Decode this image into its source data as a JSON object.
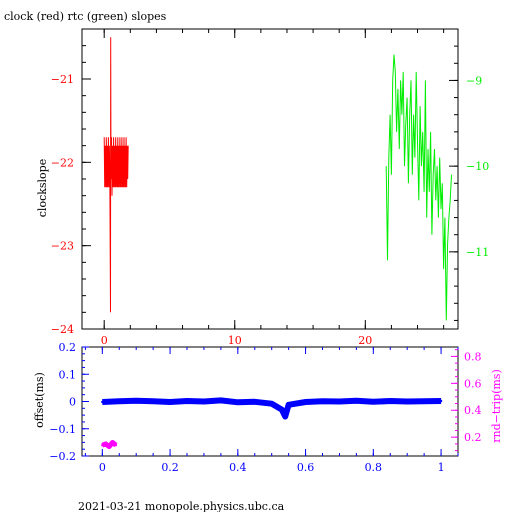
{
  "title": "clock (red) rtc (green) slopes",
  "footer": "2021-03-21  monopole.physics.ubc.ca",
  "colors": {
    "axis": "#000000",
    "clock": "#ff0000",
    "rtc": "#00ee00",
    "offset": "#0000ff",
    "rtt": "#ff00ff"
  },
  "chart_data": [
    {
      "type": "line",
      "title": "clock (red) rtc (green) slopes",
      "ylabel": "clockslope",
      "xlim": [
        -1.7,
        27.1
      ],
      "x_ticks": [
        0,
        10,
        20
      ],
      "x_minor_step": 2,
      "ylim_left": [
        -24,
        -20.4
      ],
      "y_ticks_left": [
        -21,
        -22,
        -23,
        -24
      ],
      "ylim_right": [
        -11.9,
        -8.4
      ],
      "y_ticks_right": [
        -9,
        -10,
        -11
      ],
      "y_minor_step_left": 0.2,
      "y_minor_step_right": 0.2,
      "grid": false,
      "series": [
        {
          "name": "clock",
          "axis": "left",
          "color": "#ff0000",
          "x": [
            0.0,
            0.04,
            0.08,
            0.12,
            0.16,
            0.2,
            0.24,
            0.28,
            0.32,
            0.36,
            0.4,
            0.44,
            0.48,
            0.5,
            0.52,
            0.56,
            0.6,
            0.64,
            0.68,
            0.72,
            0.76,
            0.8,
            0.84,
            0.88,
            0.92,
            0.96,
            1.0,
            1.04,
            1.08,
            1.12,
            1.16,
            1.2,
            1.24,
            1.28,
            1.32,
            1.36,
            1.4,
            1.44,
            1.48,
            1.52,
            1.56,
            1.6,
            1.64,
            1.68,
            1.72,
            1.76,
            1.8,
            1.84
          ],
          "y": [
            -21.7,
            -22.3,
            -21.8,
            -22.3,
            -21.7,
            -22.3,
            -21.8,
            -22.3,
            -21.7,
            -22.3,
            -21.8,
            -22.3,
            -23.8,
            -20.5,
            -22.2,
            -21.7,
            -22.4,
            -21.8,
            -22.3,
            -21.7,
            -22.3,
            -21.8,
            -22.3,
            -21.7,
            -22.3,
            -21.8,
            -22.3,
            -21.7,
            -22.3,
            -21.8,
            -22.3,
            -21.7,
            -22.3,
            -21.8,
            -22.3,
            -21.7,
            -22.3,
            -21.8,
            -22.3,
            -21.7,
            -22.3,
            -21.8,
            -22.3,
            -21.7,
            -22.3,
            -21.8,
            -22.2,
            -21.8
          ]
        },
        {
          "name": "rtc",
          "axis": "right",
          "color": "#00ee00",
          "x": [
            21.6,
            21.7,
            21.8,
            21.9,
            22.0,
            22.1,
            22.2,
            22.3,
            22.4,
            22.5,
            22.6,
            22.7,
            22.8,
            22.9,
            23.0,
            23.1,
            23.2,
            23.3,
            23.4,
            23.5,
            23.6,
            23.7,
            23.8,
            23.9,
            24.0,
            24.1,
            24.2,
            24.3,
            24.4,
            24.5,
            24.6,
            24.7,
            24.8,
            24.9,
            25.0,
            25.1,
            25.2,
            25.3,
            25.4,
            25.5,
            25.6,
            25.7,
            25.8,
            25.9,
            26.0,
            26.1,
            26.2,
            26.3,
            26.4,
            26.5,
            26.6
          ],
          "y": [
            -10.0,
            -11.1,
            -9.9,
            -9.4,
            -10.1,
            -9.0,
            -8.7,
            -8.9,
            -9.6,
            -9.1,
            -9.8,
            -9.0,
            -9.4,
            -8.9,
            -10.0,
            -9.5,
            -9.2,
            -10.2,
            -9.4,
            -9.0,
            -10.1,
            -9.4,
            -9.9,
            -8.9,
            -9.7,
            -10.4,
            -9.3,
            -10.0,
            -9.6,
            -10.3,
            -9.0,
            -10.6,
            -9.8,
            -10.3,
            -9.6,
            -10.8,
            -10.1,
            -9.8,
            -10.4,
            -10.0,
            -10.6,
            -9.9,
            -10.5,
            -10.2,
            -11.2,
            -10.6,
            -11.8,
            -10.9,
            -10.6,
            -10.4,
            -10.1
          ]
        }
      ]
    },
    {
      "type": "scatter",
      "ylabel": "offset(ms)",
      "ylabel_right": "rnd−trip(ms)",
      "xlim": [
        -0.06,
        1.05
      ],
      "x_ticks": [
        0,
        0.2,
        0.4,
        0.6,
        0.8,
        1
      ],
      "ylim_left": [
        -0.2,
        0.2
      ],
      "y_ticks_left": [
        0.2,
        0.1,
        0,
        -0.1,
        -0.2
      ],
      "ylim_right": [
        0.06,
        0.87
      ],
      "y_ticks_right": [
        0.2,
        0.4,
        0.6,
        0.8
      ],
      "grid": false,
      "series": [
        {
          "name": "offset",
          "axis": "left",
          "color": "#0000ff",
          "x": [
            0.0,
            0.05,
            0.1,
            0.15,
            0.2,
            0.25,
            0.3,
            0.35,
            0.4,
            0.45,
            0.5,
            0.53,
            0.54,
            0.55,
            0.6,
            0.65,
            0.7,
            0.75,
            0.8,
            0.85,
            0.9,
            0.95,
            1.0
          ],
          "y": [
            -0.002,
            0.001,
            0.003,
            0.001,
            -0.002,
            0.002,
            0.0,
            0.004,
            -0.003,
            -0.001,
            -0.008,
            -0.03,
            -0.055,
            -0.012,
            -0.002,
            0.001,
            0.0,
            0.003,
            -0.001,
            0.002,
            0.0,
            0.001,
            0.002
          ]
        },
        {
          "name": "rtt",
          "axis": "right",
          "color": "#ff00ff",
          "x": [
            0.0,
            0.01,
            0.02,
            0.03,
            0.04
          ],
          "y": [
            0.14,
            0.15,
            0.13,
            0.16,
            0.14
          ]
        }
      ]
    }
  ]
}
